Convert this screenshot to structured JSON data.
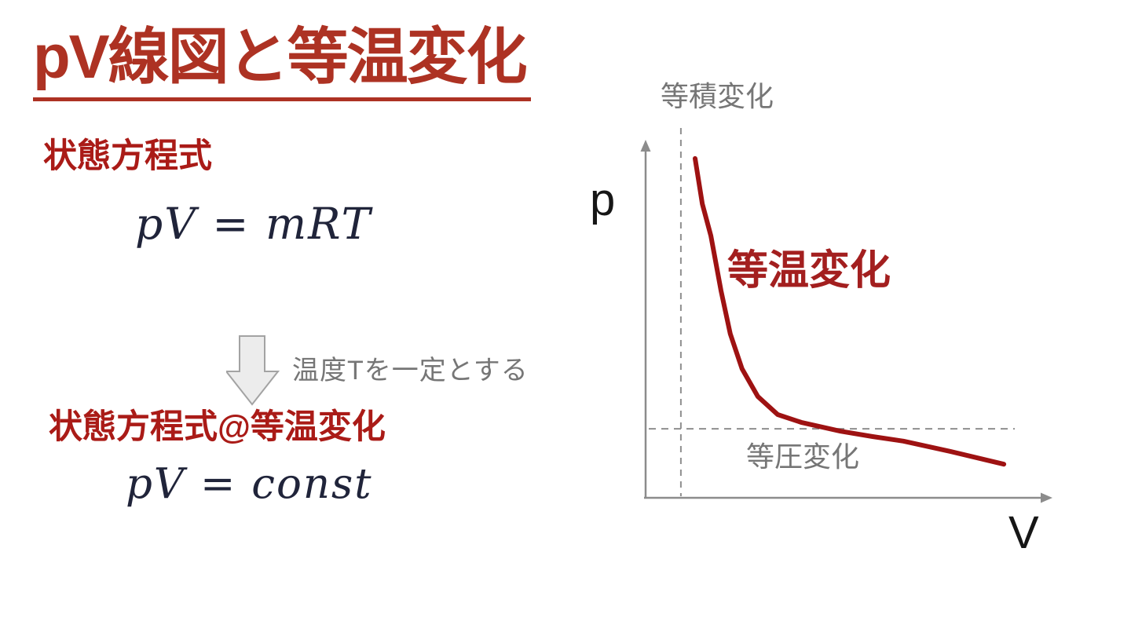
{
  "colors": {
    "title-red": "#AD3223",
    "heading-red": "#AA1B17",
    "label-red": "#A31F1F",
    "curve-red": "#9E1212",
    "gray-text": "#767676",
    "axis-gray": "#8C8C8C",
    "dash-gray": "#8F8F8F",
    "arrow-fill": "#ECECEC",
    "arrow-stroke": "#A3A3A3",
    "formula-ink": "#20243A"
  },
  "slide": {
    "title": "pV線図と等温変化",
    "equation_of_state": {
      "heading": "状態方程式",
      "formula": "pV = mRT"
    },
    "transition": {
      "arrow_icon": "down-block-arrow",
      "label": "温度Tを一定とする"
    },
    "isothermal_equation": {
      "heading": "状態方程式@等温変化",
      "formula": "pV = const"
    }
  },
  "diagram": {
    "p_axis_label": "p",
    "v_axis_label": "V",
    "isothermal_label": "等温変化",
    "isochoric_label": "等積変化",
    "isobaric_label": "等圧変化"
  },
  "chart_data": {
    "type": "line",
    "title": "pV線図 (qualitative pV diagram)",
    "xlabel": "V",
    "ylabel": "p",
    "grid": false,
    "legend_position": "none",
    "axis_note": "axes are unlabeled; x/y given as fraction 0-1 of drawn axis length",
    "series": [
      {
        "name": "等温変化 (isotherm, pV = const)",
        "x": [
          0.122,
          0.14,
          0.161,
          0.186,
          0.209,
          0.238,
          0.277,
          0.326,
          0.384,
          0.481,
          0.56,
          0.636,
          0.752,
          0.884
        ],
        "y": [
          0.958,
          0.83,
          0.74,
          0.585,
          0.463,
          0.364,
          0.286,
          0.235,
          0.213,
          0.188,
          0.173,
          0.16,
          0.131,
          0.095
        ]
      }
    ],
    "annotations": [
      {
        "label": "等積変化",
        "type": "vertical-dashed-line",
        "x": 0.087
      },
      {
        "label": "等圧変化",
        "type": "horizontal-dashed-line",
        "y": 0.195
      }
    ]
  }
}
